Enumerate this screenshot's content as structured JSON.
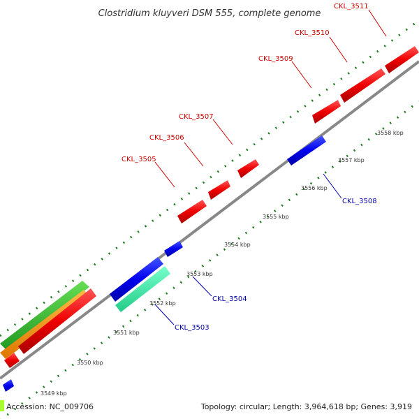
{
  "title": "Clostridium kluyveri DSM 555, complete genome",
  "footer": {
    "accession": "Accession: NC_009706",
    "topology": "Topology: circular; Length: 3,964,618 bp; Genes: 3,919"
  },
  "colors": {
    "backbone": "#888888",
    "forward_gene": "#ff0000",
    "reverse_gene": "#0000ff",
    "forward_label": "#cc0000",
    "reverse_label": "#0000aa",
    "tick": "#1e7a1e",
    "orange_feature": "#ff9900",
    "green_feature": "#33bb33",
    "teal_feature": "#33eeaa",
    "legend_swatch": "#aaff33"
  },
  "tick_labels": [
    "3549 kbp",
    "3550 kbp",
    "3551 kbp",
    "3552 kbp",
    "3553 kbp",
    "3554 kbp",
    "3555 kbp",
    "3556 kbp",
    "3557 kbp",
    "3558 kbp"
  ],
  "gene_labels": {
    "forward": [
      "CKL_3505",
      "CKL_3506",
      "CKL_3507",
      "CKL_3509",
      "CKL_3510",
      "CKL_3511"
    ],
    "reverse": [
      "CKL_3503",
      "CKL_3504",
      "CKL_3508"
    ]
  }
}
